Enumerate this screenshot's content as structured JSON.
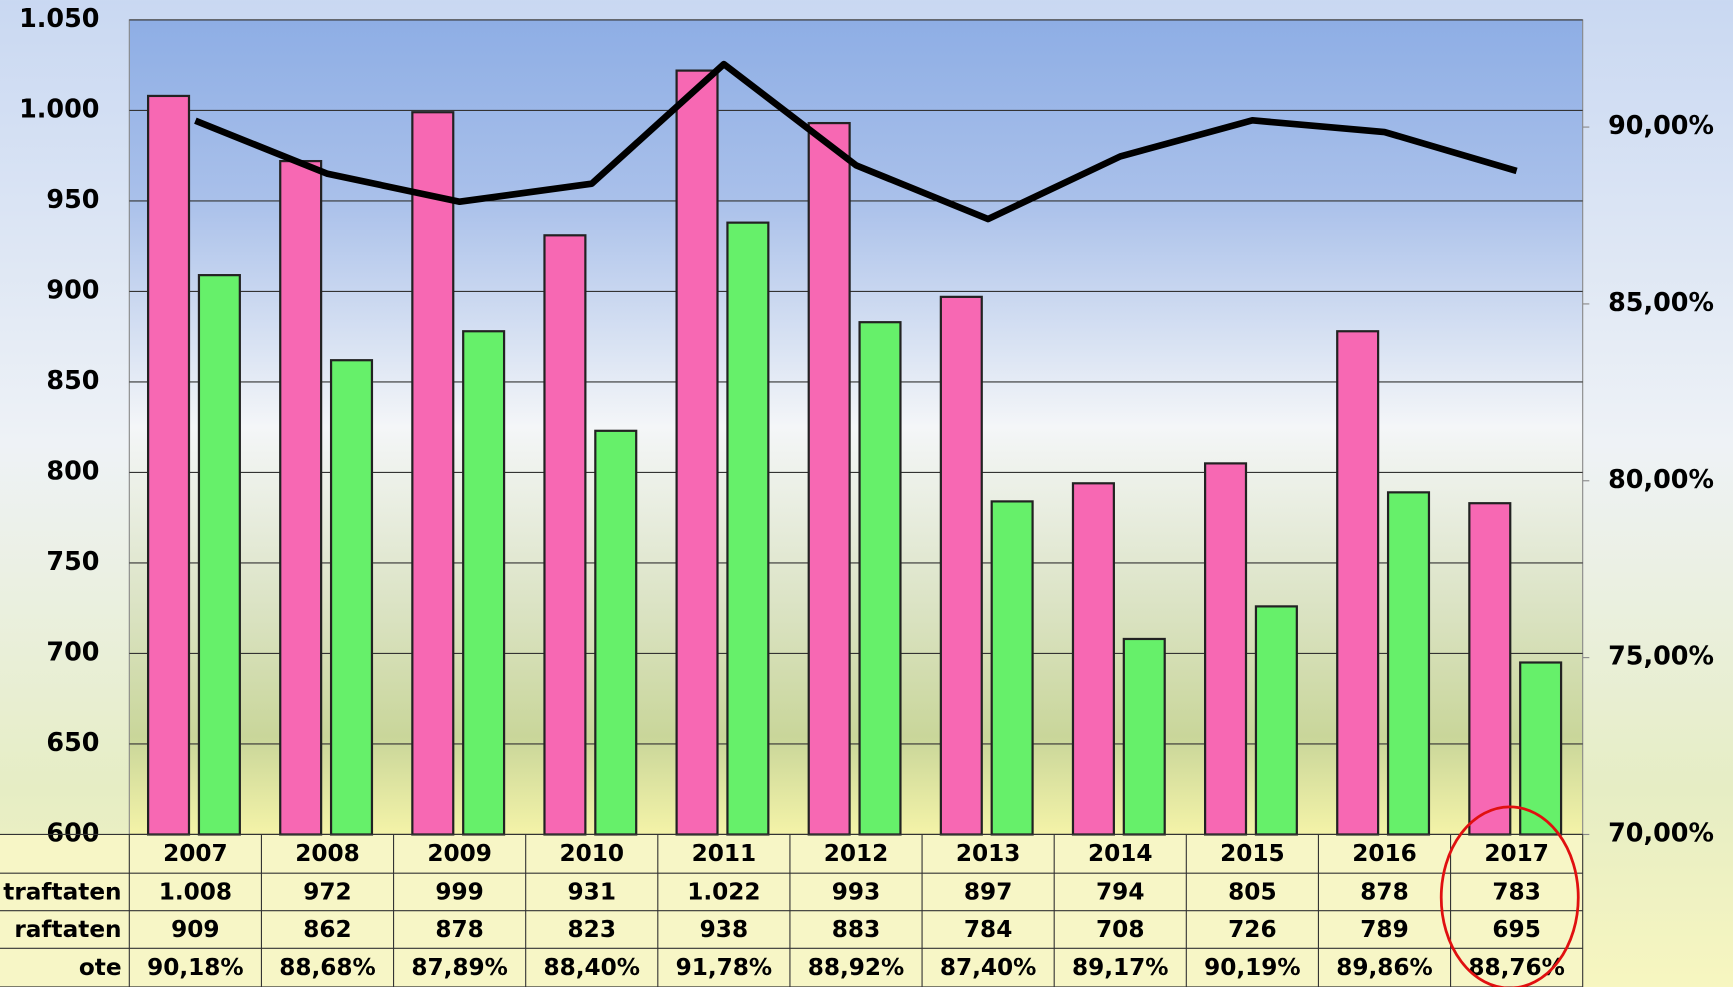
{
  "chart_data": {
    "type": "bar",
    "categories": [
      "2007",
      "2008",
      "2009",
      "2010",
      "2011",
      "2012",
      "2013",
      "2014",
      "2015",
      "2016",
      "2017"
    ],
    "series": [
      {
        "name": "traftaten",
        "color": "#f768b3",
        "values": [
          1008,
          972,
          999,
          931,
          1022,
          993,
          897,
          794,
          805,
          878,
          783
        ],
        "value_labels": [
          "1.008",
          "972",
          "999",
          "931",
          "1.022",
          "993",
          "897",
          "794",
          "805",
          "878",
          "783"
        ]
      },
      {
        "name": "raftaten",
        "color": "#66f06a",
        "values": [
          909,
          862,
          878,
          823,
          938,
          883,
          784,
          708,
          726,
          789,
          695
        ]
      },
      {
        "name": "ote",
        "type": "line",
        "axis": "y2",
        "color": "#000000",
        "values": [
          90.18,
          88.68,
          87.89,
          88.4,
          91.78,
          88.92,
          87.4,
          89.17,
          90.19,
          89.86,
          88.76
        ],
        "value_labels": [
          "90,18%",
          "88,68%",
          "87,89%",
          "88,40%",
          "91,78%",
          "88,92%",
          "87,40%",
          "89,17%",
          "90,19%",
          "89,86%",
          "88,76%"
        ]
      }
    ],
    "ylim": [
      600,
      1050
    ],
    "yticks": [
      600,
      650,
      700,
      750,
      800,
      850,
      900,
      950,
      {
        "value": 1000,
        "label": "1.000"
      },
      {
        "value": 1050,
        "label": "1.050"
      }
    ],
    "y2lim": [
      70,
      93.03
    ],
    "y2ticks": [
      {
        "value": 70,
        "label": "70,00%"
      },
      {
        "value": 75,
        "label": "75,00%"
      },
      {
        "value": 80,
        "label": "80,00%"
      },
      {
        "value": 85,
        "label": "85,00%"
      },
      {
        "value": 90,
        "label": "90,00%"
      }
    ],
    "grid": true
  }
}
